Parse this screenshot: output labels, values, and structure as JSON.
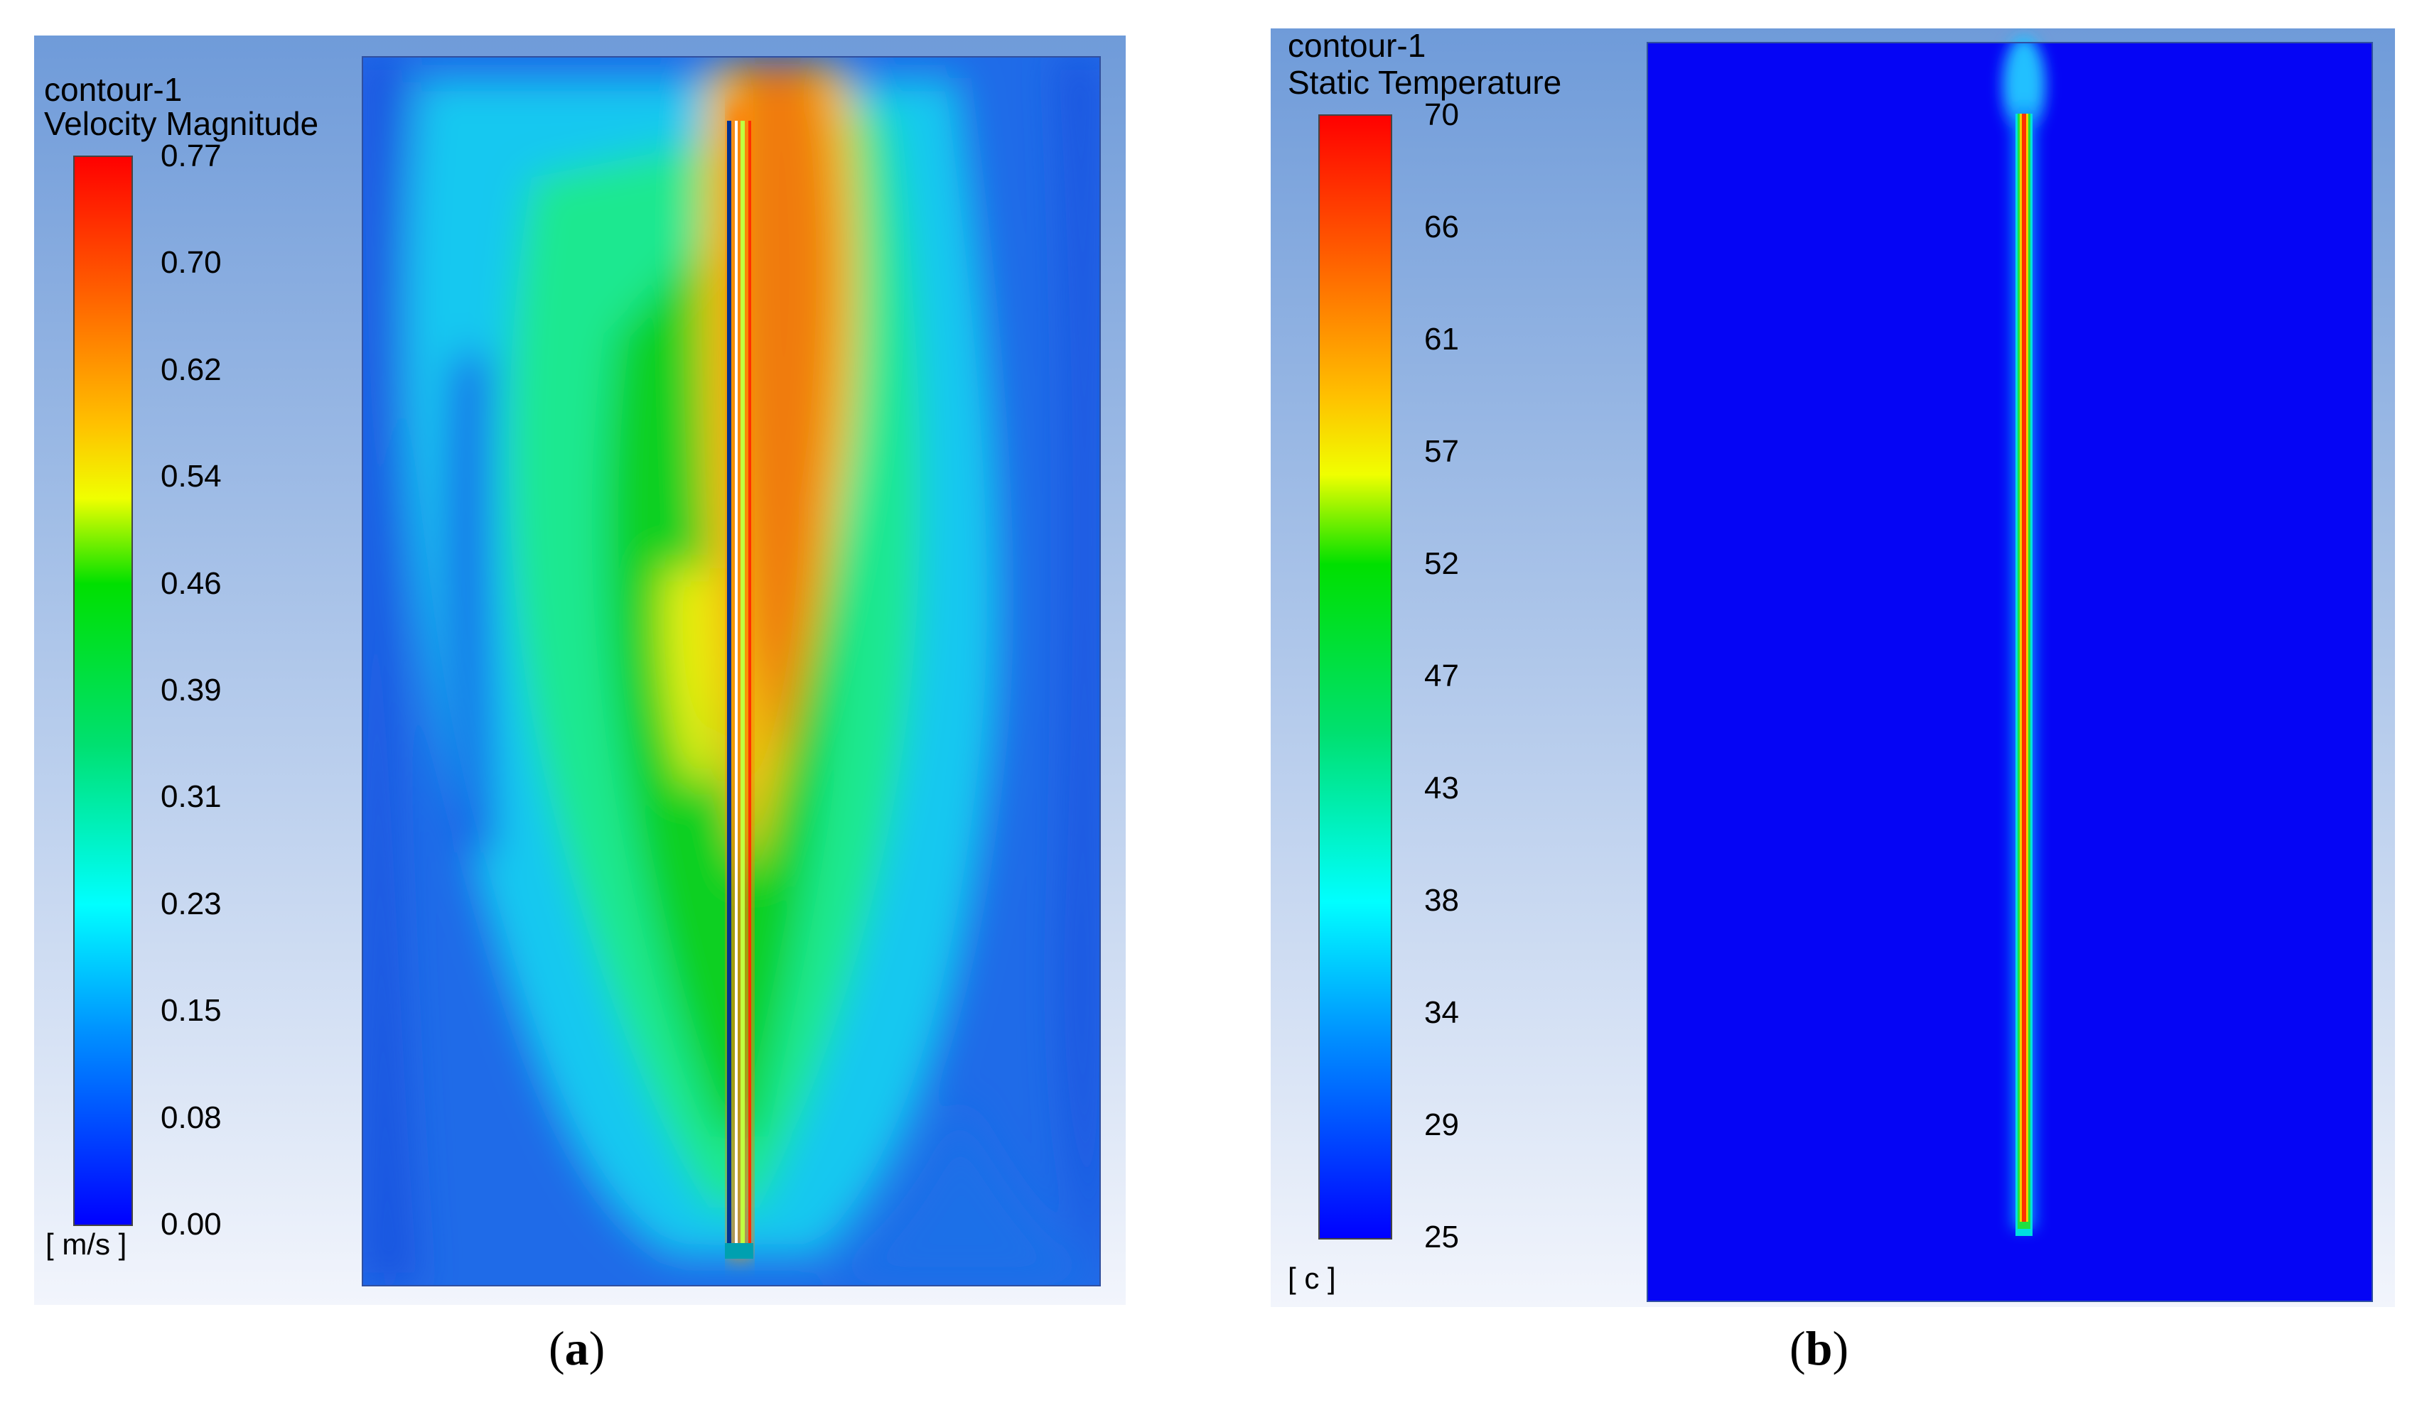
{
  "panels": [
    {
      "id": "a",
      "caption_letter": "a",
      "legend": {
        "title": "contour-1",
        "variable": "Velocity Magnitude",
        "unit": "[ m/s ]",
        "ticks": [
          "0.77",
          "0.70",
          "0.62",
          "0.54",
          "0.46",
          "0.39",
          "0.31",
          "0.23",
          "0.15",
          "0.08",
          "0.00"
        ]
      }
    },
    {
      "id": "b",
      "caption_letter": "b",
      "legend": {
        "title": "contour-1",
        "variable": "Static Temperature",
        "unit": "[ c ]",
        "ticks": [
          "70",
          "66",
          "61",
          "57",
          "52",
          "47",
          "43",
          "38",
          "34",
          "29",
          "25"
        ]
      }
    }
  ],
  "colors": {
    "background_top": "#6f9bd9",
    "background_bottom": "#f2f5fc",
    "colormap": [
      "#ff0000",
      "#ff6a00",
      "#ffd200",
      "#c8ff00",
      "#00e600",
      "#00ff96",
      "#00ffff",
      "#0096ff",
      "#0032ff",
      "#0000ff"
    ],
    "field_low": "#0000ff"
  }
}
